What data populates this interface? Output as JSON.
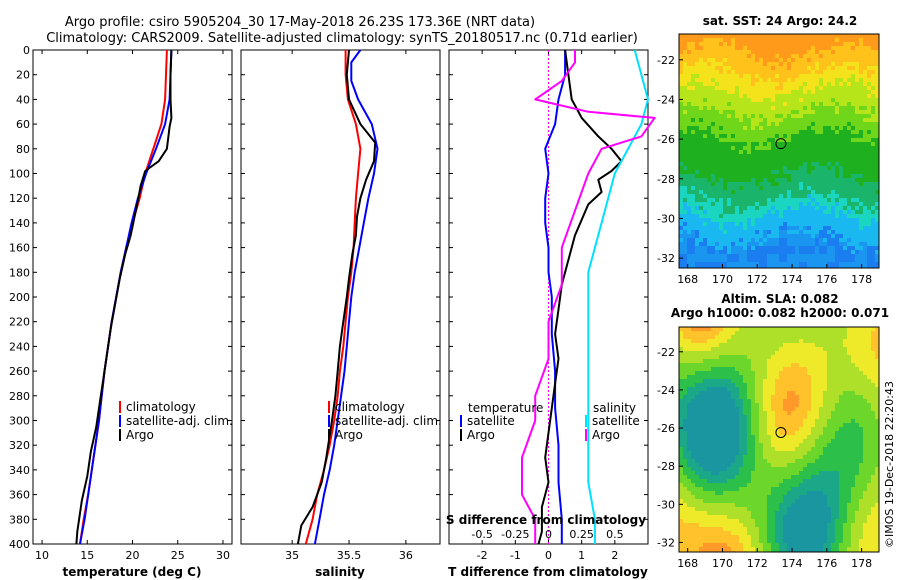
{
  "header": {
    "line1": "Argo profile: csiro 5905204_30 17-May-2018 26.23S 173.36E (NRT data)",
    "line2": "Climatology: CARS2009. Satellite-adjusted climatology: synTS_20180517.nc (0.71d earlier)"
  },
  "footer": {
    "credit": "©IMOS 19-Dec-2018 22:20:43"
  },
  "colors": {
    "climatology": "#ff0000",
    "satellite": "#0000ff",
    "argo": "#000000",
    "magenta": "#ff00ff",
    "cyan": "#00e0ff"
  },
  "chart_data": [
    {
      "id": "temperature",
      "type": "line",
      "xlabel": "temperature (deg C)",
      "xlim": [
        9,
        31
      ],
      "ylim": [
        400,
        0
      ],
      "xticks": [
        10,
        15,
        20,
        25,
        30
      ],
      "yticks": [
        0,
        20,
        40,
        60,
        80,
        100,
        120,
        140,
        160,
        180,
        200,
        220,
        240,
        260,
        280,
        300,
        320,
        340,
        360,
        380,
        400
      ],
      "legend": [
        "climatology",
        "satellite-adj. clim.",
        "Argo"
      ],
      "series": [
        {
          "name": "climatology",
          "color": "#ff0000",
          "points": [
            [
              23.8,
              0
            ],
            [
              23.7,
              20
            ],
            [
              23.6,
              40
            ],
            [
              23.2,
              60
            ],
            [
              22.3,
              80
            ],
            [
              21.4,
              100
            ],
            [
              20.8,
              120
            ],
            [
              20.0,
              140
            ],
            [
              19.3,
              160
            ],
            [
              18.7,
              180
            ],
            [
              18.2,
              200
            ],
            [
              17.7,
              220
            ],
            [
              17.3,
              240
            ],
            [
              16.9,
              260
            ],
            [
              16.6,
              280
            ],
            [
              16.3,
              300
            ],
            [
              15.9,
              320
            ],
            [
              15.5,
              340
            ],
            [
              15.1,
              360
            ],
            [
              14.6,
              380
            ],
            [
              14.2,
              400
            ]
          ]
        },
        {
          "name": "satellite-adj. clim.",
          "color": "#0000ff",
          "points": [
            [
              24.3,
              0
            ],
            [
              24.2,
              20
            ],
            [
              24.1,
              40
            ],
            [
              23.6,
              60
            ],
            [
              22.6,
              80
            ],
            [
              21.5,
              100
            ],
            [
              20.6,
              120
            ],
            [
              19.9,
              140
            ],
            [
              19.3,
              160
            ],
            [
              18.7,
              180
            ],
            [
              18.2,
              200
            ],
            [
              17.7,
              220
            ],
            [
              17.3,
              240
            ],
            [
              16.9,
              260
            ],
            [
              16.6,
              280
            ],
            [
              16.3,
              300
            ],
            [
              15.9,
              320
            ],
            [
              15.5,
              340
            ],
            [
              15.1,
              360
            ],
            [
              14.7,
              380
            ],
            [
              14.2,
              400
            ]
          ]
        },
        {
          "name": "Argo",
          "color": "#000000",
          "points": [
            [
              24.3,
              0
            ],
            [
              24.2,
              20
            ],
            [
              24.2,
              40
            ],
            [
              24.3,
              55
            ],
            [
              24.1,
              62
            ],
            [
              23.8,
              80
            ],
            [
              22.9,
              90
            ],
            [
              21.4,
              98
            ],
            [
              20.9,
              110
            ],
            [
              20.6,
              122
            ],
            [
              19.8,
              150
            ],
            [
              19.2,
              165
            ],
            [
              18.6,
              185
            ],
            [
              18.1,
              205
            ],
            [
              17.6,
              225
            ],
            [
              17.2,
              245
            ],
            [
              16.8,
              265
            ],
            [
              16.4,
              285
            ],
            [
              16.0,
              305
            ],
            [
              15.4,
              325
            ],
            [
              15.0,
              345
            ],
            [
              14.4,
              365
            ],
            [
              13.9,
              390
            ],
            [
              13.8,
              400
            ]
          ]
        }
      ]
    },
    {
      "id": "salinity",
      "type": "line",
      "xlabel": "salinity",
      "xlim": [
        34.55,
        36.3
      ],
      "ylim": [
        400,
        0
      ],
      "xticks": [
        35,
        35.5,
        36
      ],
      "xticklabels": [
        "35",
        "35.5",
        "36"
      ],
      "legend": [
        "climatology",
        "satellite-adj. clim.",
        "Argo"
      ],
      "series": [
        {
          "name": "climatology",
          "color": "#ff0000",
          "points": [
            [
              35.47,
              0
            ],
            [
              35.47,
              20
            ],
            [
              35.49,
              40
            ],
            [
              35.56,
              60
            ],
            [
              35.6,
              80
            ],
            [
              35.58,
              100
            ],
            [
              35.56,
              120
            ],
            [
              35.55,
              140
            ],
            [
              35.54,
              160
            ],
            [
              35.52,
              180
            ],
            [
              35.49,
              200
            ],
            [
              35.47,
              220
            ],
            [
              35.45,
              240
            ],
            [
              35.42,
              260
            ],
            [
              35.4,
              280
            ],
            [
              35.37,
              300
            ],
            [
              35.33,
              320
            ],
            [
              35.28,
              340
            ],
            [
              35.22,
              360
            ],
            [
              35.18,
              380
            ],
            [
              35.12,
              400
            ]
          ]
        },
        {
          "name": "satellite-adj. clim.",
          "color": "#0000ff",
          "points": [
            [
              35.6,
              0
            ],
            [
              35.52,
              10
            ],
            [
              35.52,
              25
            ],
            [
              35.58,
              40
            ],
            [
              35.7,
              60
            ],
            [
              35.75,
              80
            ],
            [
              35.72,
              100
            ],
            [
              35.67,
              120
            ],
            [
              35.63,
              140
            ],
            [
              35.59,
              160
            ],
            [
              35.55,
              180
            ],
            [
              35.52,
              200
            ],
            [
              35.5,
              220
            ],
            [
              35.48,
              240
            ],
            [
              35.46,
              260
            ],
            [
              35.43,
              280
            ],
            [
              35.4,
              300
            ],
            [
              35.37,
              320
            ],
            [
              35.33,
              340
            ],
            [
              35.28,
              360
            ],
            [
              35.24,
              380
            ],
            [
              35.2,
              400
            ]
          ]
        },
        {
          "name": "Argo",
          "color": "#000000",
          "points": [
            [
              35.5,
              0
            ],
            [
              35.48,
              20
            ],
            [
              35.5,
              40
            ],
            [
              35.6,
              60
            ],
            [
              35.73,
              75
            ],
            [
              35.72,
              90
            ],
            [
              35.65,
              105
            ],
            [
              35.6,
              120
            ],
            [
              35.57,
              135
            ],
            [
              35.56,
              150
            ],
            [
              35.53,
              165
            ],
            [
              35.5,
              185
            ],
            [
              35.48,
              200
            ],
            [
              35.45,
              220
            ],
            [
              35.42,
              240
            ],
            [
              35.4,
              260
            ],
            [
              35.38,
              280
            ],
            [
              35.35,
              300
            ],
            [
              35.3,
              330
            ],
            [
              35.26,
              350
            ],
            [
              35.18,
              370
            ],
            [
              35.08,
              385
            ],
            [
              35.05,
              400
            ]
          ]
        }
      ]
    },
    {
      "id": "difference",
      "type": "line",
      "xlabel": "T difference from climatology",
      "xlim": [
        -3,
        3
      ],
      "ylim": [
        400,
        0
      ],
      "xticks": [
        -2,
        -1,
        0,
        1,
        2
      ],
      "top_axis_label": "S difference from climatology",
      "top_xticks": [
        -0.5,
        -0.25,
        0,
        0.25,
        0.5
      ],
      "top_xticklabels": [
        "-0.5",
        "-0.25",
        "0",
        "0.25",
        "0.5"
      ],
      "legend_temperature": "temperature",
      "legend_salinity": "salinity",
      "legend_temp_items": [
        "satellite",
        "Argo"
      ],
      "legend_sal_items": [
        "satellite",
        "Argo"
      ],
      "series": [
        {
          "name": "T satellite",
          "color": "#0000ff",
          "points": [
            [
              0.5,
              0
            ],
            [
              0.5,
              20
            ],
            [
              0.3,
              40
            ],
            [
              0.2,
              60
            ],
            [
              -0.1,
              80
            ],
            [
              0.0,
              100
            ],
            [
              -0.1,
              120
            ],
            [
              -0.1,
              140
            ],
            [
              0.0,
              160
            ],
            [
              0.0,
              180
            ],
            [
              0.1,
              200
            ],
            [
              0.1,
              230
            ],
            [
              0.2,
              260
            ],
            [
              0.2,
              290
            ],
            [
              0.3,
              320
            ],
            [
              0.3,
              350
            ],
            [
              0.4,
              380
            ],
            [
              0.4,
              400
            ]
          ]
        },
        {
          "name": "T Argo",
          "color": "#000000",
          "points": [
            [
              0.5,
              0
            ],
            [
              0.6,
              20
            ],
            [
              0.7,
              40
            ],
            [
              1.0,
              55
            ],
            [
              1.5,
              70
            ],
            [
              1.9,
              80
            ],
            [
              2.2,
              90
            ],
            [
              1.9,
              98
            ],
            [
              1.5,
              105
            ],
            [
              1.6,
              115
            ],
            [
              1.2,
              125
            ],
            [
              0.8,
              150
            ],
            [
              0.6,
              170
            ],
            [
              0.4,
              190
            ],
            [
              0.3,
              210
            ],
            [
              0.2,
              230
            ],
            [
              0.3,
              250
            ],
            [
              0.2,
              270
            ],
            [
              0.1,
              290
            ],
            [
              0.0,
              310
            ],
            [
              -0.1,
              330
            ],
            [
              0.0,
              350
            ],
            [
              -0.2,
              370
            ],
            [
              -0.2,
              390
            ],
            [
              -0.3,
              400
            ]
          ]
        },
        {
          "name": "S satellite",
          "color": "#00e0ff",
          "points": [
            [
              0.65,
              0
            ],
            [
              0.7,
              20
            ],
            [
              0.75,
              40
            ],
            [
              0.7,
              60
            ],
            [
              0.6,
              80
            ],
            [
              0.5,
              100
            ],
            [
              0.45,
              120
            ],
            [
              0.4,
              140
            ],
            [
              0.35,
              160
            ],
            [
              0.3,
              180
            ],
            [
              0.3,
              200
            ],
            [
              0.3,
              230
            ],
            [
              0.3,
              260
            ],
            [
              0.3,
              290
            ],
            [
              0.3,
              320
            ],
            [
              0.3,
              350
            ],
            [
              0.35,
              380
            ],
            [
              0.35,
              400
            ]
          ]
        },
        {
          "name": "S Argo",
          "color": "#ff00ff",
          "points": [
            [
              0.2,
              0
            ],
            [
              0.2,
              10
            ],
            [
              0.1,
              25
            ],
            [
              -0.1,
              40
            ],
            [
              0.3,
              50
            ],
            [
              0.8,
              55
            ],
            [
              0.7,
              70
            ],
            [
              0.4,
              80
            ],
            [
              0.3,
              100
            ],
            [
              0.2,
              130
            ],
            [
              0.1,
              160
            ],
            [
              0.1,
              190
            ],
            [
              0.0,
              220
            ],
            [
              0.0,
              250
            ],
            [
              -0.1,
              280
            ],
            [
              -0.1,
              300
            ],
            [
              -0.2,
              330
            ],
            [
              -0.2,
              360
            ],
            [
              -0.1,
              380
            ],
            [
              -0.1,
              400
            ]
          ]
        }
      ]
    },
    {
      "id": "sst_map",
      "type": "heatmap",
      "title": "sat. SST: 24 Argo: 24.2",
      "xticks": [
        168,
        170,
        172,
        174,
        176,
        178
      ],
      "yticks": [
        -22,
        -24,
        -26,
        -28,
        -30,
        -32
      ],
      "xlim": [
        167.5,
        179
      ],
      "ylim": [
        -32.5,
        -20.7
      ],
      "marker": {
        "lon": 173.36,
        "lat": -26.23
      }
    },
    {
      "id": "sla_map",
      "type": "heatmap",
      "title_line1": "Altim. SLA: 0.082",
      "title_line2": "Argo h1000: 0.082 h2000: 0.071",
      "xticks": [
        168,
        170,
        172,
        174,
        176,
        178
      ],
      "yticks": [
        -22,
        -24,
        -26,
        -28,
        -30,
        -32
      ],
      "xlim": [
        167.5,
        179
      ],
      "ylim": [
        -32.5,
        -20.7
      ],
      "marker": {
        "lon": 173.36,
        "lat": -26.23
      }
    }
  ]
}
